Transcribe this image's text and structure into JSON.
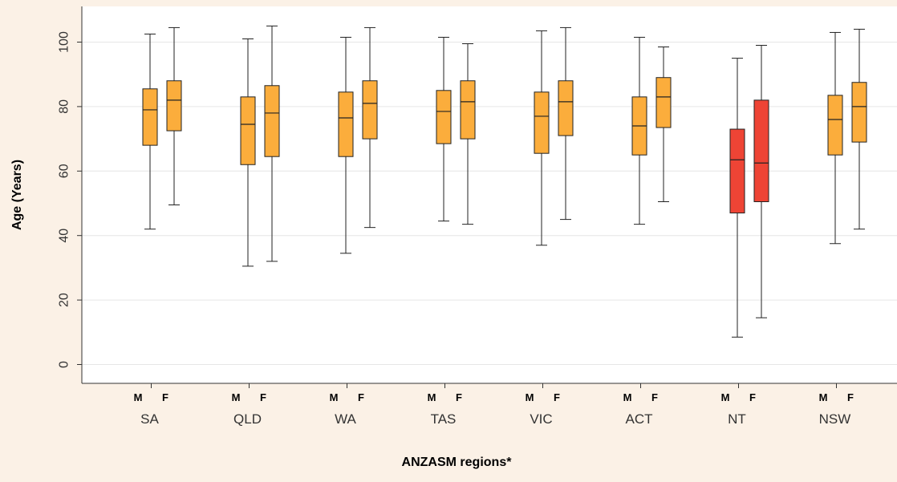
{
  "chart_data": {
    "type": "boxplot",
    "title": "",
    "xlabel": "ANZASM regions*",
    "ylabel": "Age (Years)",
    "ylim": [
      0,
      105
    ],
    "yticks": [
      0,
      20,
      40,
      60,
      80,
      100
    ],
    "grid": true,
    "legend": "none",
    "sublabels": [
      "M",
      "F"
    ],
    "colors": {
      "default": "#fbad3c",
      "highlight": "#ee4435",
      "background": "#fbf1e6",
      "plot_bg": "#ffffff",
      "grid": "#e6e6e6"
    },
    "groups": [
      {
        "name": "SA",
        "highlight": false,
        "boxes": [
          {
            "label": "M",
            "min": 42,
            "q1": 68,
            "median": 79,
            "q3": 85.5,
            "max": 102.5
          },
          {
            "label": "F",
            "min": 49.5,
            "q1": 72.5,
            "median": 82,
            "q3": 88,
            "max": 104.5
          }
        ]
      },
      {
        "name": "QLD",
        "highlight": false,
        "boxes": [
          {
            "label": "M",
            "min": 30.5,
            "q1": 62,
            "median": 74.5,
            "q3": 83,
            "max": 101
          },
          {
            "label": "F",
            "min": 32,
            "q1": 64.5,
            "median": 78,
            "q3": 86.5,
            "max": 105
          }
        ]
      },
      {
        "name": "WA",
        "highlight": false,
        "boxes": [
          {
            "label": "M",
            "min": 34.5,
            "q1": 64.5,
            "median": 76.5,
            "q3": 84.5,
            "max": 101.5
          },
          {
            "label": "F",
            "min": 42.5,
            "q1": 70,
            "median": 81,
            "q3": 88,
            "max": 104.5
          }
        ]
      },
      {
        "name": "TAS",
        "highlight": false,
        "boxes": [
          {
            "label": "M",
            "min": 44.5,
            "q1": 68.5,
            "median": 78.5,
            "q3": 85,
            "max": 101.5
          },
          {
            "label": "F",
            "min": 43.5,
            "q1": 70,
            "median": 81.5,
            "q3": 88,
            "max": 99.5
          }
        ]
      },
      {
        "name": "VIC",
        "highlight": false,
        "boxes": [
          {
            "label": "M",
            "min": 37,
            "q1": 65.5,
            "median": 77,
            "q3": 84.5,
            "max": 103.5
          },
          {
            "label": "F",
            "min": 45,
            "q1": 71,
            "median": 81.5,
            "q3": 88,
            "max": 104.5
          }
        ]
      },
      {
        "name": "ACT",
        "highlight": false,
        "boxes": [
          {
            "label": "M",
            "min": 43.5,
            "q1": 65,
            "median": 74,
            "q3": 83,
            "max": 101.5
          },
          {
            "label": "F",
            "min": 50.5,
            "q1": 73.5,
            "median": 83,
            "q3": 89,
            "max": 98.5
          }
        ]
      },
      {
        "name": "NT",
        "highlight": true,
        "boxes": [
          {
            "label": "M",
            "min": 8.5,
            "q1": 47,
            "median": 63.5,
            "q3": 73,
            "max": 95
          },
          {
            "label": "F",
            "min": 14.5,
            "q1": 50.5,
            "median": 62.5,
            "q3": 82,
            "max": 99
          }
        ]
      },
      {
        "name": "NSW",
        "highlight": false,
        "boxes": [
          {
            "label": "M",
            "min": 37.5,
            "q1": 65,
            "median": 76,
            "q3": 83.5,
            "max": 103
          },
          {
            "label": "F",
            "min": 42,
            "q1": 69,
            "median": 80,
            "q3": 87.5,
            "max": 104
          }
        ]
      }
    ]
  }
}
